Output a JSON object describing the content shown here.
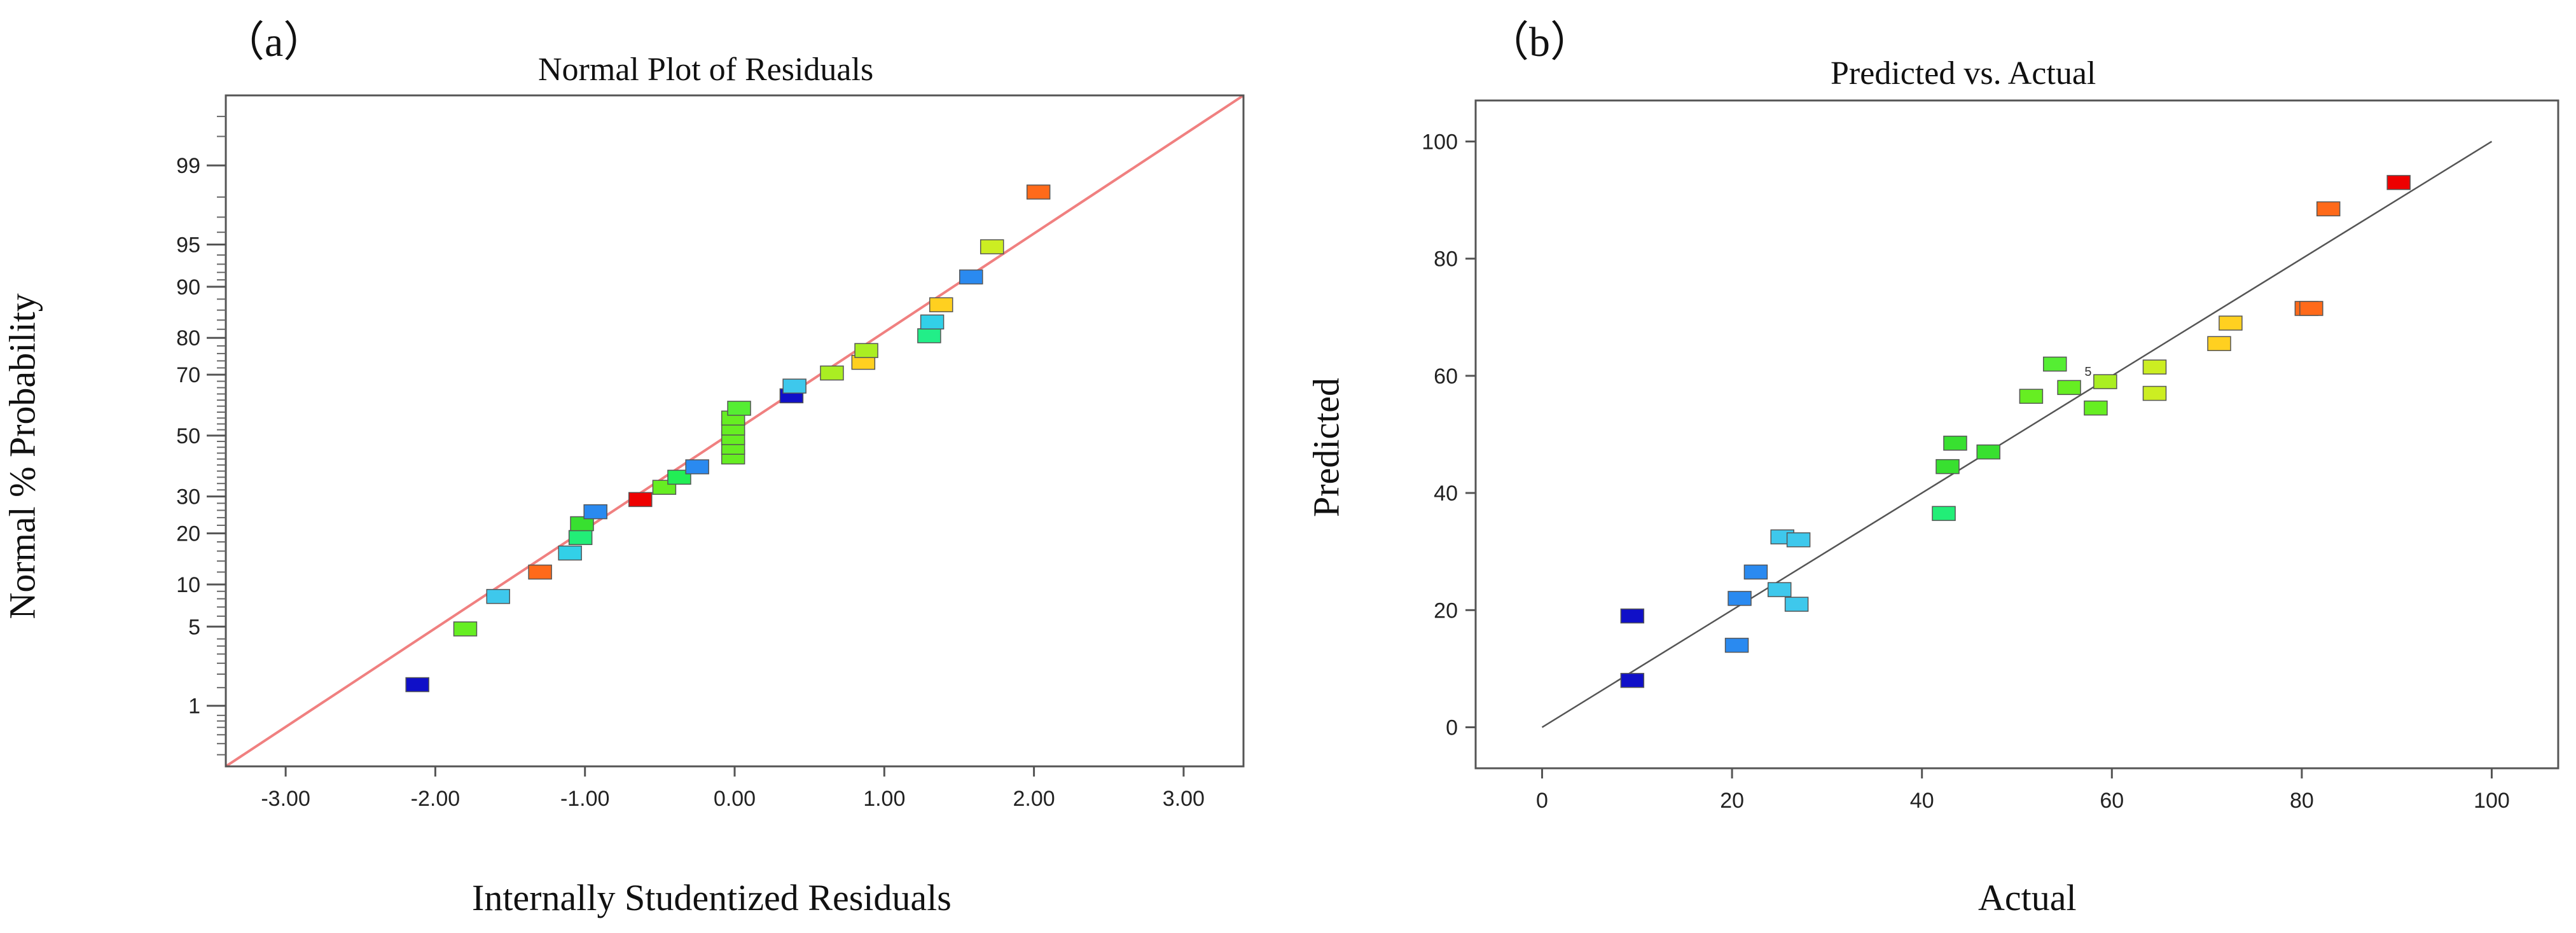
{
  "chart_data": [
    {
      "type": "scatter",
      "panel_label": "（a）",
      "title": "Normal Plot of Residuals",
      "xlabel": "Internally Studentized Residuals",
      "ylabel": "Normal % Probability",
      "xlim": [
        -3.4,
        3.4
      ],
      "x_ticks": [
        -3,
        -2,
        -1,
        0,
        1,
        2,
        3
      ],
      "x_tick_labels": [
        "-3.00",
        "-2.00",
        "-1.00",
        "0.00",
        "1.00",
        "2.00",
        "3.00"
      ],
      "y_scale": "normal-probability",
      "y_ticks": [
        1,
        5,
        10,
        20,
        30,
        50,
        70,
        80,
        90,
        95,
        99
      ],
      "y_tick_labels": [
        "1",
        "5",
        "10",
        "20",
        "30",
        "50",
        "70",
        "80",
        "90",
        "95",
        "99"
      ],
      "reference_line": {
        "x": [
          -3.4,
          3.4
        ],
        "y": [
          0.22,
          99.83
        ],
        "color": "#f08080"
      },
      "points": [
        {
          "x": -2.12,
          "y": 1.6,
          "color": "#1010c8"
        },
        {
          "x": -1.8,
          "y": 4.8,
          "color": "#66ee22"
        },
        {
          "x": -1.58,
          "y": 8.3,
          "color": "#3ec8ec"
        },
        {
          "x": -1.3,
          "y": 12.0,
          "color": "#ff6a1a"
        },
        {
          "x": -1.1,
          "y": 15.6,
          "color": "#32d0e8"
        },
        {
          "x": -1.03,
          "y": 19.0,
          "color": "#22ee77"
        },
        {
          "x": -1.02,
          "y": 22.4,
          "color": "#38e030"
        },
        {
          "x": -0.93,
          "y": 25.6,
          "color": "#2a8af0"
        },
        {
          "x": -0.63,
          "y": 29.1,
          "color": "#ee0000"
        },
        {
          "x": -0.47,
          "y": 32.8,
          "color": "#66ee22"
        },
        {
          "x": -0.37,
          "y": 36.0,
          "color": "#22ee55"
        },
        {
          "x": -0.25,
          "y": 39.4,
          "color": "#2a8af0"
        },
        {
          "x": -0.01,
          "y": 42.7,
          "color": "#66ee22"
        },
        {
          "x": -0.01,
          "y": 46.0,
          "color": "#66ee22"
        },
        {
          "x": -0.01,
          "y": 49.3,
          "color": "#66ee22"
        },
        {
          "x": -0.01,
          "y": 52.6,
          "color": "#66ee22"
        },
        {
          "x": -0.01,
          "y": 56.0,
          "color": "#66ee22"
        },
        {
          "x": 0.03,
          "y": 59.3,
          "color": "#55ee33"
        },
        {
          "x": 0.38,
          "y": 63.4,
          "color": "#1010c8"
        },
        {
          "x": 0.4,
          "y": 66.5,
          "color": "#3ec8ec"
        },
        {
          "x": 0.65,
          "y": 70.5,
          "color": "#aaee22"
        },
        {
          "x": 0.86,
          "y": 73.6,
          "color": "#ffd020"
        },
        {
          "x": 0.88,
          "y": 76.8,
          "color": "#aaee22"
        },
        {
          "x": 1.3,
          "y": 80.5,
          "color": "#22ee88"
        },
        {
          "x": 1.32,
          "y": 83.6,
          "color": "#32d0e8"
        },
        {
          "x": 1.38,
          "y": 87.0,
          "color": "#ffd020"
        },
        {
          "x": 1.58,
          "y": 91.4,
          "color": "#2a8af0"
        },
        {
          "x": 1.72,
          "y": 94.8,
          "color": "#ccee22"
        },
        {
          "x": 2.03,
          "y": 98.2,
          "color": "#ff6a1a"
        }
      ]
    },
    {
      "type": "scatter",
      "panel_label": "（b）",
      "title": "Predicted vs. Actual",
      "xlabel": "Actual",
      "ylabel": "Predicted",
      "xlim": [
        -7,
        107
      ],
      "ylim": [
        -7,
        107
      ],
      "x_ticks": [
        0,
        20,
        40,
        60,
        80,
        100
      ],
      "x_tick_labels": [
        "0",
        "20",
        "40",
        "60",
        "80",
        "100"
      ],
      "y_ticks": [
        0,
        20,
        40,
        60,
        80,
        100
      ],
      "y_tick_labels": [
        "0",
        "20",
        "40",
        "60",
        "80",
        "100"
      ],
      "reference_line": {
        "x": [
          0,
          100
        ],
        "y": [
          0,
          100
        ],
        "color": "#555555"
      },
      "annotations": [
        {
          "x": 57.5,
          "y": 60,
          "text": "5"
        }
      ],
      "points": [
        {
          "x": 9.5,
          "y": 8,
          "color": "#1010c8"
        },
        {
          "x": 9.5,
          "y": 19,
          "color": "#1010c8"
        },
        {
          "x": 20.5,
          "y": 14,
          "color": "#2a8af0"
        },
        {
          "x": 20.8,
          "y": 22,
          "color": "#2a8af0"
        },
        {
          "x": 22.5,
          "y": 26.5,
          "color": "#2a8af0"
        },
        {
          "x": 25.0,
          "y": 23.5,
          "color": "#3ec8ec"
        },
        {
          "x": 25.3,
          "y": 32.5,
          "color": "#3ec8ec"
        },
        {
          "x": 26.8,
          "y": 21,
          "color": "#3ec8ec"
        },
        {
          "x": 27.0,
          "y": 32,
          "color": "#3ec8ec"
        },
        {
          "x": 42.3,
          "y": 36.5,
          "color": "#22ee77"
        },
        {
          "x": 42.7,
          "y": 44.5,
          "color": "#38e030"
        },
        {
          "x": 43.5,
          "y": 48.5,
          "color": "#38e030"
        },
        {
          "x": 47.0,
          "y": 47,
          "color": "#38e030"
        },
        {
          "x": 51.5,
          "y": 56.5,
          "color": "#66ee22"
        },
        {
          "x": 54.0,
          "y": 62,
          "color": "#55ee33"
        },
        {
          "x": 55.5,
          "y": 58,
          "color": "#66ee22"
        },
        {
          "x": 58.3,
          "y": 54.5,
          "color": "#66ee22"
        },
        {
          "x": 59.3,
          "y": 59,
          "color": "#aaee22"
        },
        {
          "x": 64.5,
          "y": 57,
          "color": "#ccee22"
        },
        {
          "x": 64.5,
          "y": 61.5,
          "color": "#ccee22"
        },
        {
          "x": 71.3,
          "y": 65.5,
          "color": "#ffd020"
        },
        {
          "x": 72.5,
          "y": 69,
          "color": "#ffd020"
        },
        {
          "x": 80.5,
          "y": 71.5,
          "color": "#ff6a1a"
        },
        {
          "x": 81.0,
          "y": 71.5,
          "color": "#ff6a1a"
        },
        {
          "x": 82.8,
          "y": 88.5,
          "color": "#ff6a1a"
        },
        {
          "x": 90.2,
          "y": 93,
          "color": "#ee0000"
        }
      ]
    }
  ]
}
